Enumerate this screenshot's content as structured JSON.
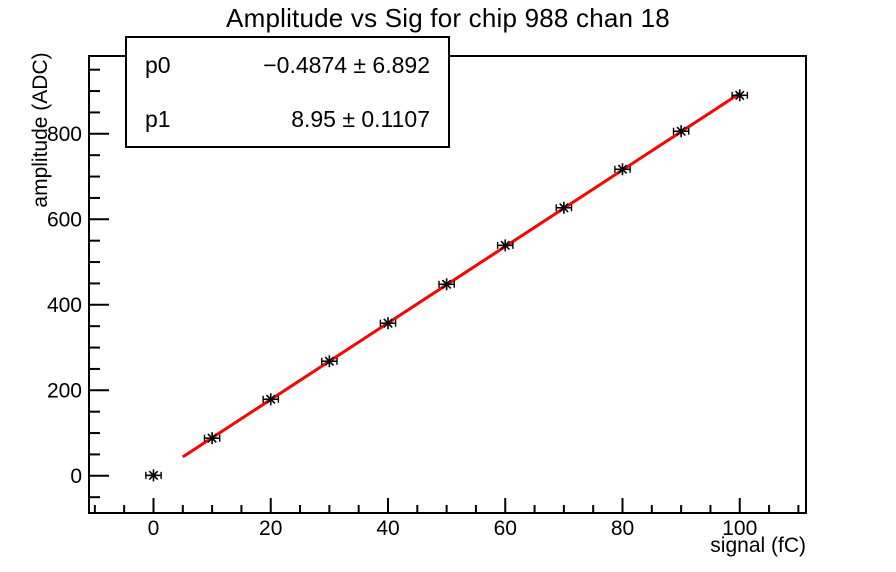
{
  "chart_data": {
    "type": "scatter",
    "title": "Amplitude vs Sig for chip 988 chan 18",
    "xlabel": "signal (fC)",
    "ylabel": "amplitude (ADC)",
    "xlim": [
      -11,
      111.3
    ],
    "ylim": [
      -87,
      982
    ],
    "x_major_ticks": [
      0,
      20,
      40,
      60,
      80,
      100
    ],
    "x_minor_step": 5,
    "y_major_ticks": [
      0,
      200,
      400,
      600,
      800
    ],
    "y_minor_step": 50,
    "grid": false,
    "legend_position": "none",
    "points": {
      "x": [
        0,
        10,
        20,
        30,
        40,
        50,
        60,
        70,
        80,
        90,
        100
      ],
      "y": [
        1,
        88,
        179,
        268,
        357,
        448,
        539,
        627,
        717,
        806,
        890
      ],
      "x_err": 1.3,
      "y_err": 3,
      "marker": "star"
    },
    "fit": {
      "p0": -0.4874,
      "p1": 8.95,
      "range": [
        5,
        100
      ]
    }
  },
  "stats": {
    "rows": [
      {
        "name": "p0",
        "value": "−0.4874 ± 6.892"
      },
      {
        "name": "p1",
        "value": "8.95 ± 0.1107"
      }
    ]
  },
  "colors": {
    "fit_line": "#ff0000",
    "axis": "#000000",
    "marker": "#000000",
    "background": "#ffffff"
  }
}
